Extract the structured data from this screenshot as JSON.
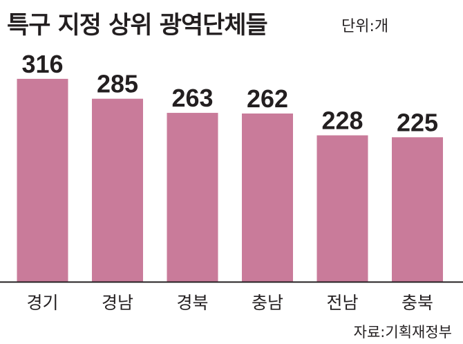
{
  "title": "특구 지정 상위 광역단체들",
  "unit": "단위:개",
  "source": "자료:기획재정부",
  "colors": {
    "bar": "#c97b9a",
    "axis": "#231f20",
    "text": "#231f20"
  },
  "chart_data": {
    "type": "bar",
    "title": "특구 지정 상위 광역단체들",
    "unit": "단위:개",
    "categories": [
      "경기",
      "경남",
      "경북",
      "충남",
      "전남",
      "충북"
    ],
    "values": [
      316,
      285,
      263,
      262,
      228,
      225
    ],
    "xlabel": "",
    "ylabel": "",
    "ylim": [
      0,
      345
    ],
    "grid": false,
    "legend": "none",
    "data_labels": true
  }
}
